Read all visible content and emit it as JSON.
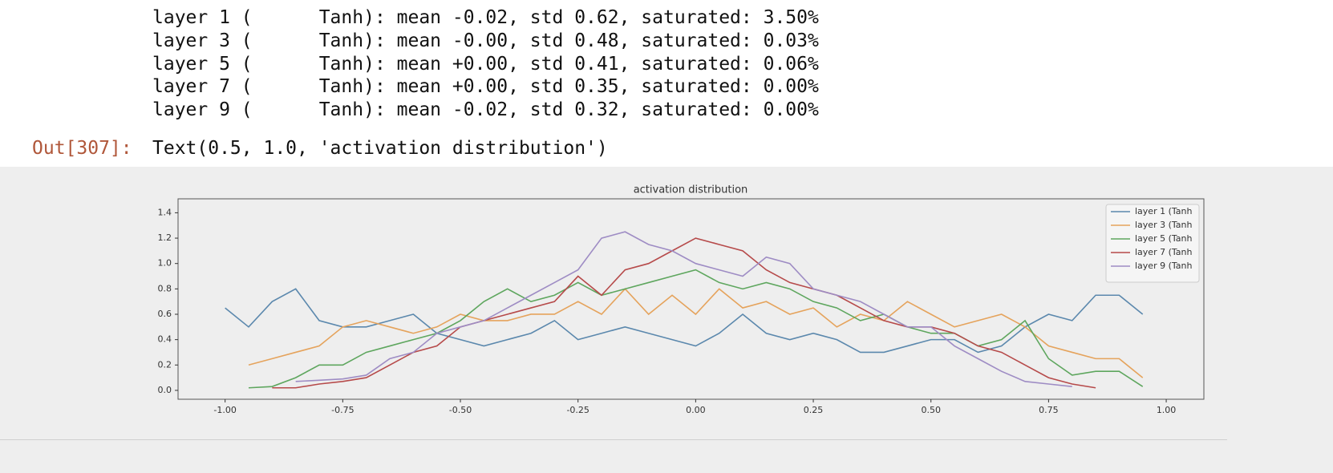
{
  "output": {
    "lines": [
      "layer 1 (      Tanh): mean -0.02, std 0.62, saturated: 3.50%",
      "layer 3 (      Tanh): mean -0.00, std 0.48, saturated: 0.03%",
      "layer 5 (      Tanh): mean +0.00, std 0.41, saturated: 0.06%",
      "layer 7 (      Tanh): mean +0.00, std 0.35, saturated: 0.00%",
      "layer 9 (      Tanh): mean -0.02, std 0.32, saturated: 0.00%"
    ],
    "prompt": "Out[307]:",
    "text": "Text(0.5, 1.0, 'activation distribution')"
  },
  "chart_data": {
    "type": "line",
    "title": "activation distribution",
    "x": [
      -1.0,
      -0.95,
      -0.9,
      -0.85,
      -0.8,
      -0.75,
      -0.7,
      -0.65,
      -0.6,
      -0.55,
      -0.5,
      -0.45,
      -0.4,
      -0.35,
      -0.3,
      -0.25,
      -0.2,
      -0.15,
      -0.1,
      -0.05,
      0.0,
      0.05,
      0.1,
      0.15,
      0.2,
      0.25,
      0.3,
      0.35,
      0.4,
      0.45,
      0.5,
      0.55,
      0.6,
      0.65,
      0.7,
      0.75,
      0.8,
      0.85,
      0.9,
      0.95,
      1.0
    ],
    "series": [
      {
        "name": "layer 1 (Tanh",
        "color": "#5b88ad",
        "values": [
          0.65,
          0.5,
          0.7,
          0.8,
          0.55,
          0.5,
          0.5,
          0.55,
          0.6,
          0.45,
          0.4,
          0.35,
          0.4,
          0.45,
          0.55,
          0.4,
          0.45,
          0.5,
          0.45,
          0.4,
          0.35,
          0.45,
          0.6,
          0.45,
          0.4,
          0.45,
          0.4,
          0.3,
          0.3,
          0.35,
          0.4,
          0.4,
          0.3,
          0.35,
          0.5,
          0.6,
          0.55,
          0.75,
          0.75,
          0.6,
          null
        ]
      },
      {
        "name": "layer 3 (Tanh",
        "color": "#e5a35c",
        "values": [
          null,
          0.2,
          0.25,
          0.3,
          0.35,
          0.5,
          0.55,
          0.5,
          0.45,
          0.5,
          0.6,
          0.55,
          0.55,
          0.6,
          0.6,
          0.7,
          0.6,
          0.8,
          0.6,
          0.75,
          0.6,
          0.8,
          0.65,
          0.7,
          0.6,
          0.65,
          0.5,
          0.6,
          0.55,
          0.7,
          0.6,
          0.5,
          0.55,
          0.6,
          0.5,
          0.35,
          0.3,
          0.25,
          0.25,
          0.1,
          null
        ]
      },
      {
        "name": "layer 5 (Tanh",
        "color": "#5ea65e",
        "values": [
          null,
          0.02,
          0.03,
          0.1,
          0.2,
          0.2,
          0.3,
          0.35,
          0.4,
          0.45,
          0.55,
          0.7,
          0.8,
          0.7,
          0.75,
          0.85,
          0.75,
          0.8,
          0.85,
          0.9,
          0.95,
          0.85,
          0.8,
          0.85,
          0.8,
          0.7,
          0.65,
          0.55,
          0.6,
          0.5,
          0.45,
          0.45,
          0.35,
          0.4,
          0.55,
          0.25,
          0.12,
          0.15,
          0.15,
          0.03,
          null
        ]
      },
      {
        "name": "layer 7 (Tanh",
        "color": "#b64a4a",
        "values": [
          null,
          null,
          0.02,
          0.02,
          0.05,
          0.07,
          0.1,
          0.2,
          0.3,
          0.35,
          0.5,
          0.55,
          0.6,
          0.65,
          0.7,
          0.9,
          0.75,
          0.95,
          1.0,
          1.1,
          1.2,
          1.15,
          1.1,
          0.95,
          0.85,
          0.8,
          0.75,
          0.65,
          0.55,
          0.5,
          0.5,
          0.45,
          0.35,
          0.3,
          0.2,
          0.1,
          0.05,
          0.02,
          null,
          null,
          null
        ]
      },
      {
        "name": "layer 9 (Tanh",
        "color": "#9e8cc4",
        "values": [
          null,
          null,
          null,
          0.07,
          0.08,
          0.09,
          0.12,
          0.25,
          0.3,
          0.45,
          0.5,
          0.55,
          0.65,
          0.75,
          0.85,
          0.95,
          1.2,
          1.25,
          1.15,
          1.1,
          1.0,
          0.95,
          0.9,
          1.05,
          1.0,
          0.8,
          0.75,
          0.7,
          0.6,
          0.5,
          0.5,
          0.35,
          0.25,
          0.15,
          0.07,
          0.05,
          0.03,
          null,
          null,
          null,
          null
        ]
      }
    ],
    "xlim": [
      -1.1,
      1.08
    ],
    "ylim": [
      -0.07,
      1.51
    ],
    "xticks": [
      {
        "value": -1.0,
        "label": "-1.00"
      },
      {
        "value": -0.75,
        "label": "-0.75"
      },
      {
        "value": -0.5,
        "label": "-0.50"
      },
      {
        "value": -0.25,
        "label": "-0.25"
      },
      {
        "value": 0,
        "label": "0.00"
      },
      {
        "value": 0.25,
        "label": "0.25"
      },
      {
        "value": 0.5,
        "label": "0.50"
      },
      {
        "value": 0.75,
        "label": "0.75"
      },
      {
        "value": 1.0,
        "label": "1.00"
      }
    ],
    "yticks": [
      {
        "value": 0,
        "label": "0.0"
      },
      0.2,
      0.4,
      0.6,
      0.8,
      {
        "value": 1.0,
        "label": "1.0"
      },
      1.2,
      1.4
    ],
    "legend": "upper right"
  }
}
